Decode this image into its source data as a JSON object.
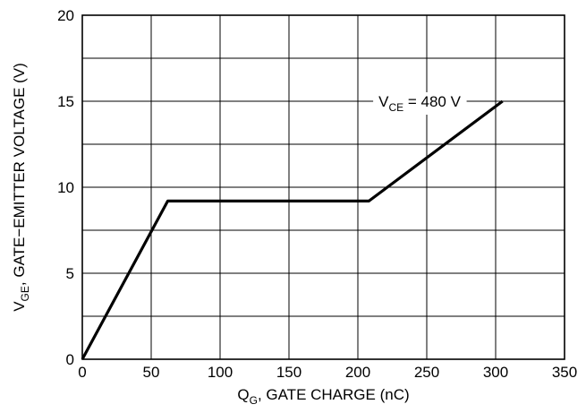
{
  "chart_data": {
    "type": "line",
    "xlabel": {
      "main": "Q",
      "sub": "G",
      "rest": ", GATE CHARGE (nC)"
    },
    "ylabel": {
      "main": "V",
      "sub": "GE",
      "rest": ", GATE−EMITTER VOLTAGE (V)"
    },
    "xlim": [
      0,
      350
    ],
    "ylim": [
      0,
      20
    ],
    "x_ticks": [
      0,
      50,
      100,
      150,
      200,
      250,
      300,
      350
    ],
    "y_ticks": [
      0,
      5,
      10,
      15,
      20
    ],
    "x_tick_labels": [
      "0",
      "50",
      "100",
      "150",
      "200",
      "250",
      "300",
      "350"
    ],
    "y_tick_labels": [
      "0",
      "5",
      "10",
      "15",
      "20"
    ],
    "grid": true,
    "series": [
      {
        "x": [
          0,
          62,
          208,
          305
        ],
        "y": [
          0,
          9.2,
          9.2,
          15
        ]
      }
    ],
    "annotations": [
      {
        "main": "V",
        "sub": "CE",
        "rest": " = 480 V",
        "x": 215,
        "y": 15
      }
    ]
  }
}
